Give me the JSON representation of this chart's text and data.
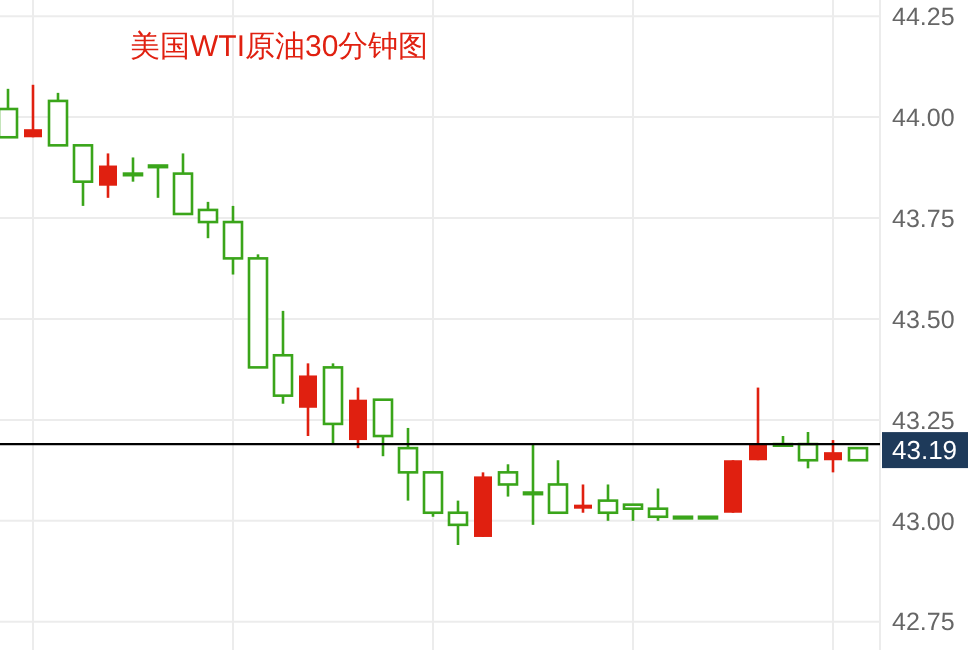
{
  "chart_data": {
    "type": "candlestick",
    "title": "美国WTI原油30分钟图",
    "categories": [
      null,
      null,
      null,
      null,
      null,
      null,
      null,
      null,
      null,
      null,
      null,
      null,
      null,
      null,
      null,
      null,
      null,
      null,
      null,
      null,
      null,
      null,
      null,
      null,
      null,
      null,
      null,
      null,
      null,
      null,
      null,
      null,
      null,
      null,
      null
    ],
    "ohlc": [
      [
        44.02,
        44.07,
        43.95,
        43.95
      ],
      [
        43.95,
        44.08,
        43.95,
        43.97
      ],
      [
        44.04,
        44.06,
        43.93,
        43.93
      ],
      [
        43.93,
        43.93,
        43.78,
        43.84
      ],
      [
        43.83,
        43.91,
        43.8,
        43.88
      ],
      [
        43.86,
        43.9,
        43.84,
        43.86
      ],
      [
        43.88,
        43.88,
        43.8,
        43.88
      ],
      [
        43.86,
        43.91,
        43.76,
        43.76
      ],
      [
        43.77,
        43.79,
        43.7,
        43.74
      ],
      [
        43.74,
        43.78,
        43.61,
        43.65
      ],
      [
        43.65,
        43.66,
        43.38,
        43.38
      ],
      [
        43.41,
        43.52,
        43.29,
        43.31
      ],
      [
        43.28,
        43.39,
        43.21,
        43.36
      ],
      [
        43.38,
        43.39,
        43.19,
        43.24
      ],
      [
        43.2,
        43.33,
        43.18,
        43.3
      ],
      [
        43.3,
        43.3,
        43.16,
        43.21
      ],
      [
        43.18,
        43.23,
        43.05,
        43.12
      ],
      [
        43.12,
        43.12,
        43.01,
        43.02
      ],
      [
        43.02,
        43.05,
        42.94,
        42.99
      ],
      [
        42.96,
        43.12,
        42.96,
        43.11
      ],
      [
        43.12,
        43.14,
        43.06,
        43.09
      ],
      [
        43.07,
        43.19,
        42.99,
        43.07
      ],
      [
        43.09,
        43.15,
        43.02,
        43.02
      ],
      [
        43.03,
        43.09,
        43.02,
        43.04
      ],
      [
        43.05,
        43.09,
        43.0,
        43.02
      ],
      [
        43.04,
        43.04,
        43.0,
        43.03
      ],
      [
        43.03,
        43.08,
        43.0,
        43.01
      ],
      [
        43.01,
        43.01,
        43.01,
        43.01
      ],
      [
        43.01,
        43.01,
        43.01,
        43.01
      ],
      [
        43.02,
        43.15,
        43.02,
        43.15
      ],
      [
        43.15,
        43.33,
        43.15,
        43.19
      ],
      [
        43.19,
        43.21,
        43.19,
        43.19
      ],
      [
        43.19,
        43.22,
        43.13,
        43.15
      ],
      [
        43.15,
        43.2,
        43.12,
        43.17
      ],
      [
        43.18,
        43.18,
        43.15,
        43.15
      ]
    ],
    "colors": [
      "#3aa51a",
      "#e02010",
      "#3aa51a",
      "#3aa51a",
      "#e02010",
      "#3aa51a",
      "#3aa51a",
      "#3aa51a",
      "#3aa51a",
      "#3aa51a",
      "#3aa51a",
      "#3aa51a",
      "#e02010",
      "#3aa51a",
      "#e02010",
      "#3aa51a",
      "#3aa51a",
      "#3aa51a",
      "#3aa51a",
      "#e02010",
      "#3aa51a",
      "#3aa51a",
      "#3aa51a",
      "#e02010",
      "#3aa51a",
      "#3aa51a",
      "#3aa51a",
      "#3aa51a",
      "#3aa51a",
      "#e02010",
      "#e02010",
      "#3aa51a",
      "#3aa51a",
      "#e02010",
      "#3aa51a"
    ],
    "ylim": [
      42.68,
      44.29
    ],
    "yticks": [
      42.75,
      {
        "value": 43.0,
        "label": "43.00"
      },
      43.25,
      {
        "value": 43.5,
        "label": "43.50"
      },
      43.75,
      {
        "value": 44.0,
        "label": "44.00"
      },
      44.25
    ],
    "grid": true,
    "tick_labels": "y",
    "ref_lines": [
      {
        "axis": "y",
        "value": 43.19,
        "label": "43.19",
        "color": "#000000"
      }
    ]
  }
}
